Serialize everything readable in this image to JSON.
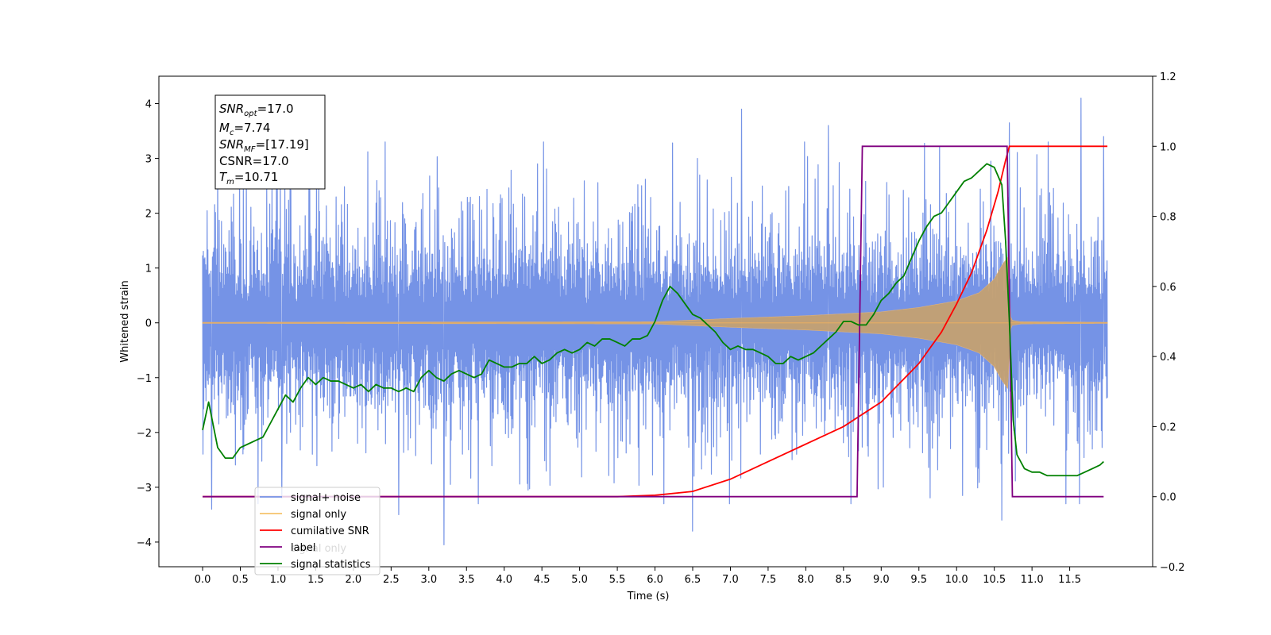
{
  "chart_data": {
    "type": "line",
    "xlabel": "Time (s)",
    "ylabel": "Whitened strain",
    "xlim": [
      -0.58,
      12.6
    ],
    "ylim": [
      -4.45,
      4.5
    ],
    "y2lim": [
      -0.2,
      1.2
    ],
    "x_ticks": [
      "0.0",
      "0.5",
      "1.0",
      "1.5",
      "2.0",
      "2.5",
      "3.0",
      "3.5",
      "4.0",
      "4.5",
      "5.0",
      "5.5",
      "6.0",
      "6.5",
      "7.0",
      "7.5",
      "8.0",
      "8.5",
      "9.0",
      "9.5",
      "10.0",
      "10.5",
      "11.0",
      "11.5"
    ],
    "y_ticks": [
      "−4",
      "−3",
      "−2",
      "−1",
      "0",
      "1",
      "2",
      "3",
      "4"
    ],
    "y2_ticks": [
      "−0.2",
      "0.0",
      "0.2",
      "0.4",
      "0.6",
      "0.8",
      "1.0",
      "1.2"
    ],
    "annotation": {
      "snr_opt": "=17.0",
      "mc": "=7.74",
      "snr_mf": "=[17.19]",
      "csnr": "CSNR=17.0",
      "tm": "=10.71"
    },
    "legend": {
      "placement": "lower-left",
      "entries": [
        "signal+ noise",
        "signal only",
        "cumilative SNR",
        "label",
        "signal statistics"
      ],
      "hidden_overlap_text": "signal only"
    },
    "series": [
      {
        "name": "signal+ noise",
        "axis": "left",
        "color": "#7593e6",
        "description_range": [
          -2.5,
          2.5
        ],
        "peak_spikes": [
          [
            0.12,
            -3.4
          ],
          [
            1.05,
            -3.2
          ],
          [
            2.6,
            -3.5
          ],
          [
            3.2,
            -4.05
          ],
          [
            6.5,
            -3.8
          ],
          [
            7.15,
            3.9
          ],
          [
            8.3,
            3.6
          ],
          [
            10.6,
            -3.6
          ],
          [
            10.7,
            3.65
          ],
          [
            11.65,
            4.1
          ],
          [
            11.95,
            3.4
          ],
          [
            11.45,
            -3.3
          ],
          [
            8.6,
            -3.3
          ]
        ]
      },
      {
        "name": "signal only",
        "axis": "left",
        "color": "#c4a071",
        "envelope": {
          "x": [
            0.0,
            6.0,
            7.0,
            8.0,
            9.0,
            9.5,
            10.0,
            10.3,
            10.5,
            10.6,
            10.68,
            10.72,
            10.85,
            12.0
          ],
          "amp": [
            0.01,
            0.02,
            0.08,
            0.13,
            0.2,
            0.28,
            0.4,
            0.55,
            0.8,
            1.05,
            1.2,
            0.05,
            0.02,
            0.01
          ]
        }
      },
      {
        "name": "cumilative SNR",
        "axis": "right",
        "color": "#ff0000",
        "x": [
          0.0,
          5.5,
          6.0,
          6.5,
          7.0,
          7.5,
          8.0,
          8.5,
          9.0,
          9.5,
          9.8,
          10.0,
          10.2,
          10.4,
          10.55,
          10.65,
          10.7,
          10.75,
          12.0
        ],
        "y": [
          0.0,
          0.0,
          0.004,
          0.015,
          0.05,
          0.1,
          0.15,
          0.2,
          0.27,
          0.38,
          0.47,
          0.55,
          0.64,
          0.76,
          0.87,
          0.96,
          1.0,
          1.0,
          1.0
        ]
      },
      {
        "name": "label",
        "axis": "right",
        "color": "#800080",
        "x": [
          0.0,
          8.68,
          8.75,
          10.67,
          10.74,
          11.95
        ],
        "y": [
          0.0,
          0.0,
          1.0,
          1.0,
          0.0,
          0.0
        ]
      },
      {
        "name": "signal statistics",
        "axis": "right",
        "color": "#008000",
        "x": [
          0.0,
          0.08,
          0.2,
          0.3,
          0.4,
          0.5,
          0.6,
          0.7,
          0.8,
          0.9,
          1.0,
          1.1,
          1.2,
          1.3,
          1.4,
          1.5,
          1.6,
          1.7,
          1.8,
          1.9,
          2.0,
          2.1,
          2.2,
          2.3,
          2.4,
          2.5,
          2.6,
          2.7,
          2.8,
          2.9,
          3.0,
          3.1,
          3.2,
          3.3,
          3.4,
          3.5,
          3.6,
          3.7,
          3.8,
          3.9,
          4.0,
          4.1,
          4.2,
          4.3,
          4.4,
          4.5,
          4.6,
          4.7,
          4.8,
          4.9,
          5.0,
          5.1,
          5.2,
          5.3,
          5.4,
          5.5,
          5.6,
          5.7,
          5.8,
          5.9,
          6.0,
          6.1,
          6.2,
          6.3,
          6.4,
          6.5,
          6.6,
          6.7,
          6.8,
          6.9,
          7.0,
          7.1,
          7.2,
          7.3,
          7.4,
          7.5,
          7.6,
          7.7,
          7.8,
          7.9,
          8.0,
          8.1,
          8.2,
          8.3,
          8.4,
          8.5,
          8.6,
          8.7,
          8.8,
          8.9,
          9.0,
          9.1,
          9.2,
          9.3,
          9.4,
          9.5,
          9.6,
          9.7,
          9.8,
          9.9,
          10.0,
          10.1,
          10.2,
          10.3,
          10.4,
          10.5,
          10.6,
          10.65,
          10.7,
          10.75,
          10.8,
          10.9,
          11.0,
          11.1,
          11.2,
          11.3,
          11.4,
          11.5,
          11.6,
          11.7,
          11.8,
          11.9,
          11.95
        ],
        "y": [
          0.19,
          0.27,
          0.14,
          0.11,
          0.11,
          0.14,
          0.15,
          0.16,
          0.17,
          0.21,
          0.25,
          0.29,
          0.27,
          0.31,
          0.34,
          0.32,
          0.34,
          0.33,
          0.33,
          0.32,
          0.31,
          0.32,
          0.3,
          0.32,
          0.31,
          0.31,
          0.3,
          0.31,
          0.3,
          0.34,
          0.36,
          0.34,
          0.33,
          0.35,
          0.36,
          0.35,
          0.34,
          0.35,
          0.39,
          0.38,
          0.37,
          0.37,
          0.38,
          0.38,
          0.4,
          0.38,
          0.39,
          0.41,
          0.42,
          0.41,
          0.42,
          0.44,
          0.43,
          0.45,
          0.45,
          0.44,
          0.43,
          0.45,
          0.45,
          0.46,
          0.5,
          0.56,
          0.6,
          0.58,
          0.55,
          0.52,
          0.51,
          0.49,
          0.47,
          0.44,
          0.42,
          0.43,
          0.42,
          0.42,
          0.41,
          0.4,
          0.38,
          0.38,
          0.4,
          0.39,
          0.4,
          0.41,
          0.43,
          0.45,
          0.47,
          0.5,
          0.5,
          0.49,
          0.49,
          0.52,
          0.56,
          0.58,
          0.61,
          0.63,
          0.68,
          0.73,
          0.77,
          0.8,
          0.81,
          0.84,
          0.87,
          0.9,
          0.91,
          0.93,
          0.95,
          0.94,
          0.89,
          0.73,
          0.5,
          0.22,
          0.12,
          0.08,
          0.07,
          0.07,
          0.06,
          0.06,
          0.06,
          0.06,
          0.06,
          0.07,
          0.08,
          0.09,
          0.1
        ]
      }
    ]
  }
}
